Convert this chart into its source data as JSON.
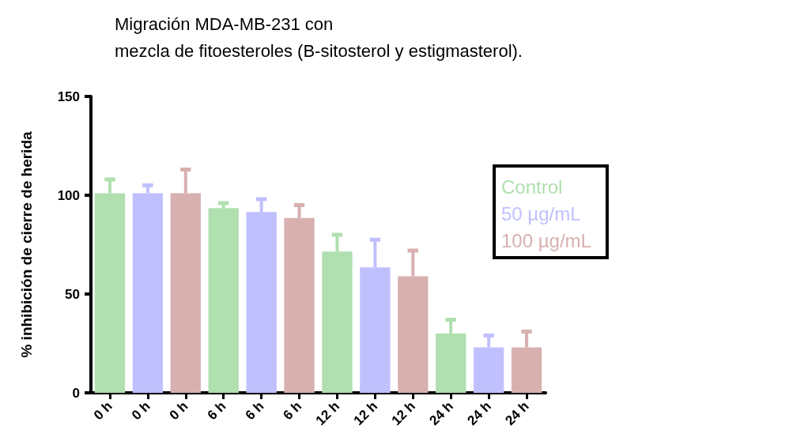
{
  "chart_data": {
    "type": "bar",
    "title": "Migración MDA-MB-231 con\nmezcla de fitoesteroles (B-sitosterol y estigmasterol).",
    "ylabel": "% inhibición de cierre de herida",
    "categories": [
      "0 h",
      "0 h",
      "0 h",
      "6 h",
      "6 h",
      "6 h",
      "12 h",
      "12 h",
      "12 h",
      "24 h",
      "24 h",
      "24 h"
    ],
    "series": [
      {
        "name": "Control",
        "color": "#b0dfb0",
        "values": [
          101,
          null,
          null,
          93.5,
          null,
          null,
          71.5,
          null,
          null,
          30,
          null,
          null
        ],
        "errors": [
          [
            101,
            108
          ],
          null,
          null,
          [
            93.5,
            96
          ],
          null,
          null,
          [
            71.5,
            80
          ],
          null,
          null,
          [
            30,
            37
          ],
          null,
          null
        ]
      },
      {
        "name": "50 µg/mL",
        "color": "#c0c0ff",
        "values": [
          null,
          101,
          null,
          null,
          91.5,
          null,
          null,
          63.5,
          null,
          null,
          23,
          null
        ],
        "errors": [
          null,
          [
            101,
            105
          ],
          null,
          null,
          [
            91.5,
            98
          ],
          null,
          null,
          [
            63.5,
            77.5
          ],
          null,
          null,
          [
            23,
            29
          ],
          null
        ]
      },
      {
        "name": "100 µg/mL",
        "color": "#d8b0b0",
        "values": [
          null,
          null,
          101,
          null,
          null,
          88.5,
          null,
          null,
          59,
          null,
          null,
          23
        ],
        "errors": [
          null,
          null,
          [
            101,
            113
          ],
          null,
          null,
          [
            88.5,
            95
          ],
          null,
          null,
          [
            59,
            72
          ],
          null,
          null,
          [
            23,
            31
          ]
        ]
      }
    ],
    "ylim": [
      0,
      150
    ],
    "yticks": [
      0,
      50,
      100,
      150
    ],
    "grid": false,
    "legend": "right"
  }
}
